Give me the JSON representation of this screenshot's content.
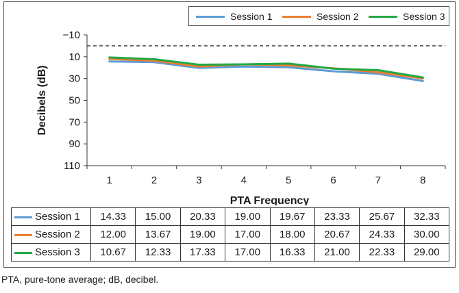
{
  "chart_data": {
    "type": "line",
    "title": "",
    "xlabel": "PTA Frequency",
    "ylabel": "Decibels (dB)",
    "x": [
      1,
      2,
      3,
      4,
      5,
      6,
      7,
      8
    ],
    "x_tick_labels": [
      "1",
      "2",
      "3",
      "4",
      "5",
      "6",
      "7",
      "8"
    ],
    "y_tick_labels": [
      "−10",
      "10",
      "30",
      "50",
      "70",
      "90",
      "110"
    ],
    "y_ticks": [
      -10,
      10,
      30,
      50,
      70,
      90,
      110
    ],
    "ylim": [
      -10,
      110
    ],
    "y_inverted": true,
    "reference_line": {
      "y": 0,
      "style": "dashed",
      "color": "#333333"
    },
    "grid": false,
    "legend_position": "top-right",
    "series": [
      {
        "name": "Session 1",
        "color": "#5b9bd5",
        "values": [
          14.33,
          15.0,
          20.33,
          19.0,
          19.67,
          23.33,
          25.67,
          32.33
        ],
        "display": [
          "14.33",
          "15.00",
          "20.33",
          "19.00",
          "19.67",
          "23.33",
          "25.67",
          "32.33"
        ]
      },
      {
        "name": "Session 2",
        "color": "#ed7d31",
        "values": [
          12.0,
          13.67,
          19.0,
          17.0,
          18.0,
          20.67,
          24.33,
          30.0
        ],
        "display": [
          "12.00",
          "13.67",
          "19.00",
          "17.00",
          "18.00",
          "20.67",
          "24.33",
          "30.00"
        ]
      },
      {
        "name": "Session 3",
        "color": "#22a846",
        "values": [
          10.67,
          12.33,
          17.33,
          17.0,
          16.33,
          21.0,
          22.33,
          29.0
        ],
        "display": [
          "10.67",
          "12.33",
          "17.33",
          "17.00",
          "16.33",
          "21.00",
          "22.33",
          "29.00"
        ]
      }
    ]
  },
  "footnote": "PTA, pure-tone average; dB, decibel."
}
